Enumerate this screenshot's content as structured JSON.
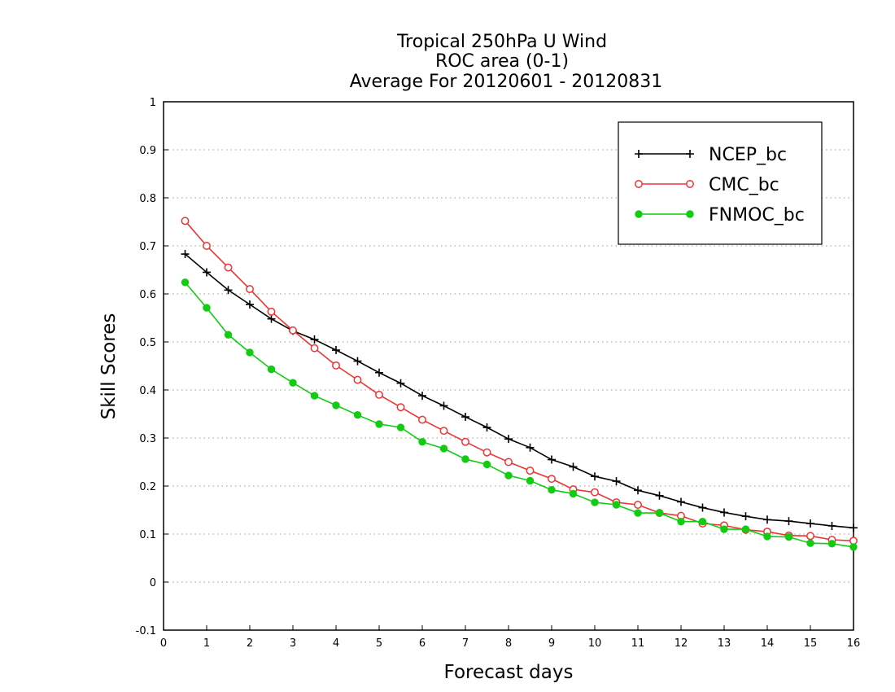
{
  "chart_data": {
    "type": "line",
    "title_lines": [
      "Tropical 250hPa U Wind",
      "ROC area (0-1)",
      "Average For 20120601 - 20120831"
    ],
    "xlabel": "Forecast days",
    "ylabel": "Skill Scores",
    "xlim": [
      0,
      16
    ],
    "ylim": [
      -0.1,
      1
    ],
    "xticks": [
      "0",
      "1",
      "2",
      "3",
      "4",
      "5",
      "6",
      "7",
      "8",
      "9",
      "10",
      "11",
      "12",
      "13",
      "14",
      "15",
      "16"
    ],
    "yticks": [
      "-0.1",
      "0",
      "0.1",
      "0.2",
      "0.3",
      "0.4",
      "0.5",
      "0.6",
      "0.7",
      "0.8",
      "0.9",
      "1"
    ],
    "grid": "horizontal dotted",
    "legend_position": "top-right",
    "x": [
      0.5,
      1,
      1.5,
      2,
      2.5,
      3,
      3.5,
      4,
      4.5,
      5,
      5.5,
      6,
      6.5,
      7,
      7.5,
      8,
      8.5,
      9,
      9.5,
      10,
      10.5,
      11,
      11.5,
      12,
      12.5,
      13,
      13.5,
      14,
      14.5,
      15,
      15.5,
      16
    ],
    "series": [
      {
        "name": "NCEP_bc",
        "color": "#000000",
        "marker": "plus",
        "values": [
          0.683,
          0.645,
          0.608,
          0.578,
          0.548,
          0.523,
          0.505,
          0.483,
          0.46,
          0.436,
          0.414,
          0.388,
          0.367,
          0.344,
          0.322,
          0.298,
          0.28,
          0.255,
          0.24,
          0.22,
          0.21,
          0.191,
          0.18,
          0.167,
          0.155,
          0.145,
          0.137,
          0.13,
          0.127,
          0.122,
          0.117,
          0.113
        ]
      },
      {
        "name": "CMC_bc",
        "color": "#ee3333",
        "marker": "open-circle",
        "values": [
          0.752,
          0.7,
          0.655,
          0.61,
          0.563,
          0.524,
          0.487,
          0.451,
          0.421,
          0.39,
          0.364,
          0.338,
          0.315,
          0.292,
          0.27,
          0.25,
          0.232,
          0.215,
          0.193,
          0.187,
          0.166,
          0.161,
          0.144,
          0.138,
          0.122,
          0.118,
          0.109,
          0.105,
          0.097,
          0.096,
          0.088,
          0.086
        ]
      },
      {
        "name": "FNMOC_bc",
        "color": "#11cc11",
        "marker": "filled-circle",
        "values": [
          0.624,
          0.571,
          0.515,
          0.478,
          0.443,
          0.415,
          0.388,
          0.368,
          0.348,
          0.329,
          0.322,
          0.292,
          0.278,
          0.256,
          0.245,
          0.222,
          0.211,
          0.192,
          0.184,
          0.166,
          0.161,
          0.144,
          0.144,
          0.126,
          0.126,
          0.11,
          0.11,
          0.095,
          0.094,
          0.081,
          0.08,
          0.073
        ]
      }
    ]
  }
}
